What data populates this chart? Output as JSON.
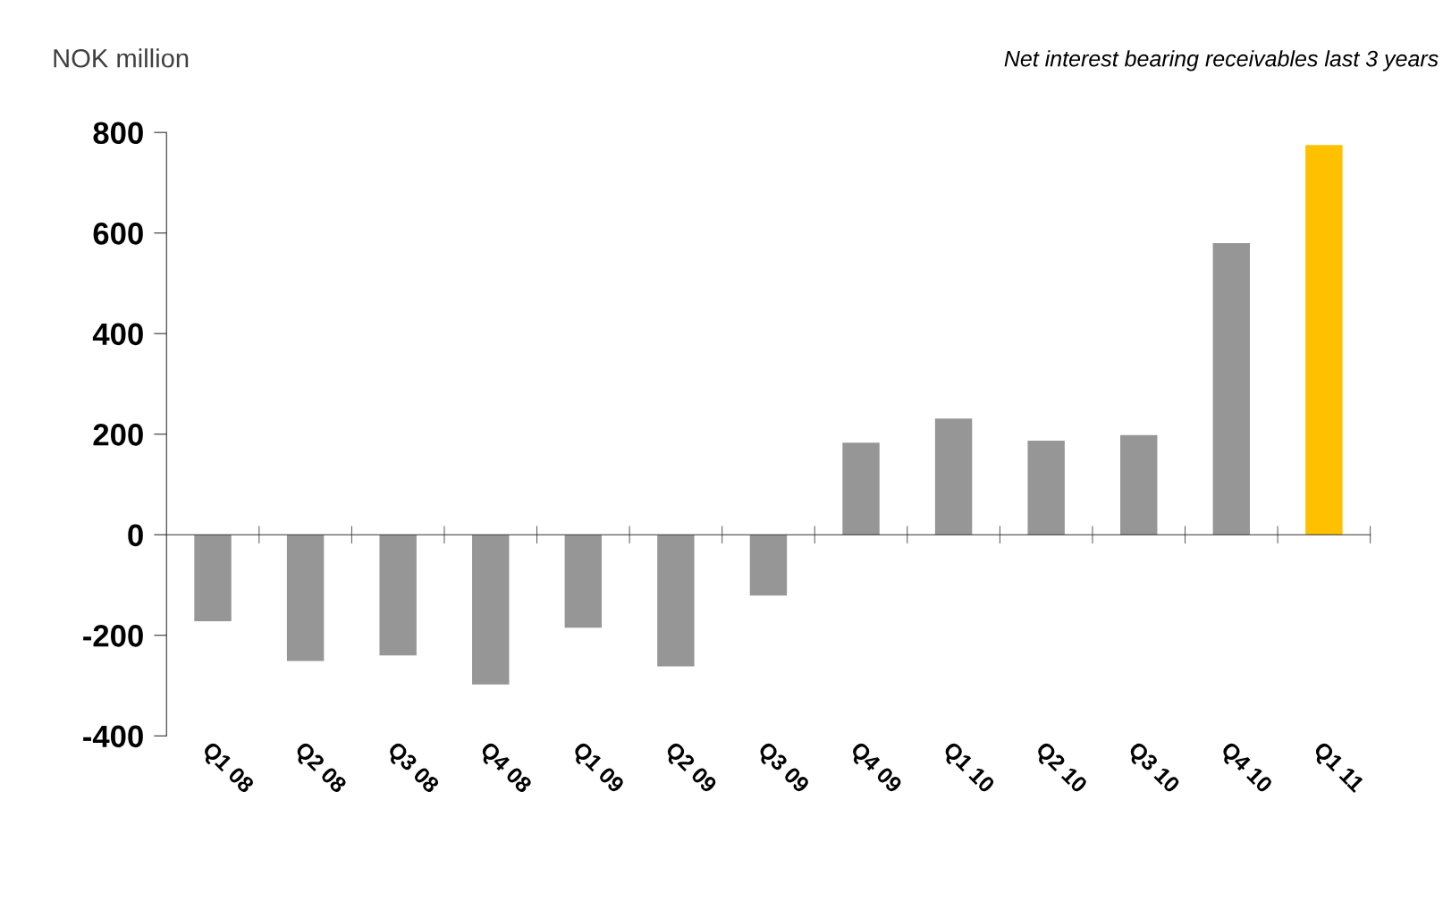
{
  "chart_data": {
    "type": "bar",
    "title": "Net interest bearing receivables last 3 years",
    "ylabel": "NOK million",
    "categories": [
      "Q1 08",
      "Q2 08",
      "Q3 08",
      "Q4 08",
      "Q1 09",
      "Q2 09",
      "Q3 09",
      "Q4 09",
      "Q1 10",
      "Q2 10",
      "Q3 10",
      "Q4 10",
      "Q1 11"
    ],
    "values": [
      -172,
      -251,
      -240,
      -298,
      -185,
      -262,
      -121,
      183,
      231,
      187,
      198,
      580,
      775
    ],
    "colors": [
      "#969696",
      "#969696",
      "#969696",
      "#969696",
      "#969696",
      "#969696",
      "#969696",
      "#969696",
      "#969696",
      "#969696",
      "#969696",
      "#969696",
      "#ffc000"
    ],
    "ylim": [
      -400,
      800
    ],
    "yticks": [
      -400,
      -200,
      0,
      200,
      400,
      600,
      800
    ]
  }
}
